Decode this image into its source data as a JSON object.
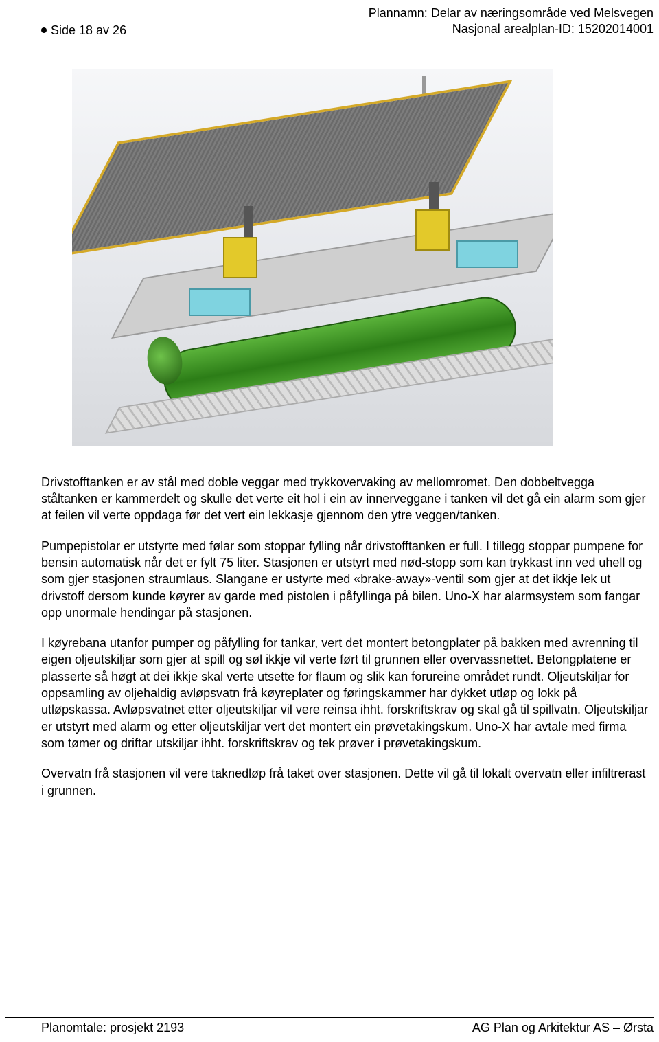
{
  "header": {
    "page_label": "Side 18 av 26",
    "plan_name_label": "Plannamn:",
    "plan_name": "Delar av næringsområde ved Melsvegen",
    "plan_id_label": "Nasjonal arealplan-ID:",
    "plan_id": "15202014001"
  },
  "figure": {
    "alt": "3D CAD-rendering of a fuel station module: corrugated canopy roof with yellow trim on two posts, two yellow fuel dispensers on a grey deck with cyan side panels, mounted over a large green cylindrical fuel tank on a mesh skid frame.",
    "colors": {
      "roof_trim": "#d4a928",
      "roof_fill": "#6f6f6f",
      "dispenser": "#e3c92a",
      "panel": "#7fd3e0",
      "tank": "#2c7d17",
      "deck": "#cfcfcf",
      "background_top": "#f6f7f9",
      "background_bottom": "#d7d9dd"
    }
  },
  "body": {
    "p1": "Drivstofftanken er av stål med doble veggar med trykkovervaking av mellomromet. Den dobbeltvegga ståltanken er kammerdelt og skulle det verte eit hol i ein av innerveggane i tanken vil det gå ein alarm som gjer at feilen vil verte oppdaga før det vert ein lekkasje gjennom den ytre veggen/tanken.",
    "p2": "Pumpepistolar er utstyrte med følar som stoppar fylling når drivstofftanken er full. I tillegg stoppar pumpene for bensin automatisk når det er fylt 75 liter. Stasjonen er utstyrt med nød-stopp som kan trykkast inn ved uhell og som gjer stasjonen straumlaus. Slangane er ustyrte med «brake-away»-ventil som gjer at det ikkje lek ut drivstoff dersom kunde køyrer av garde med pistolen i påfyllinga på bilen. Uno-X har alarmsystem som fangar opp unormale hendingar på stasjonen.",
    "p3": "I køyrebana utanfor pumper og påfylling for tankar, vert det montert betongplater på bakken med avrenning til eigen oljeutskiljar som gjer at spill og søl ikkje vil verte ført til grunnen eller overvassnettet. Betongplatene er plasserte så høgt at dei ikkje skal verte utsette for flaum og slik kan forureine området rundt. Oljeutskiljar for oppsamling av oljehaldig avløpsvatn frå køyreplater og føringskammer har dykket utløp og lokk på utløpskassa. Avløpsvatnet etter oljeutskiljar vil vere reinsa ihht. forskriftskrav og skal gå til spillvatn. Oljeutskiljar er utstyrt med alarm og etter oljeutskiljar vert det montert ein prøvetakingskum. Uno-X har avtale med firma som tømer og driftar utskiljar ihht. forskriftskrav og tek prøver i prøvetakingskum.",
    "p4": "Overvatn frå stasjonen vil vere taknedløp frå taket over stasjonen. Dette vil gå til lokalt overvatn eller infiltrerast i grunnen."
  },
  "footer": {
    "left": "Planomtale: prosjekt 2193",
    "right": "AG Plan og Arkitektur AS – Ørsta"
  }
}
